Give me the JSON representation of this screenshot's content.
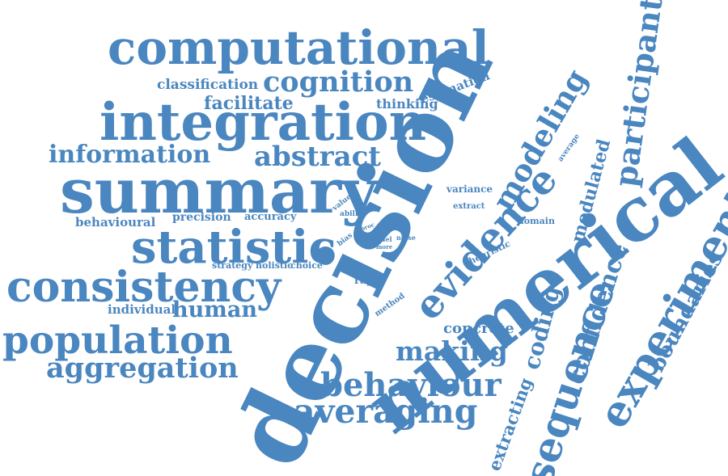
{
  "word_cloud": {
    "text_color": "#4a86bf",
    "background_color": "#ffffff",
    "words": {
      "decision": "decision",
      "numerical": "numerical",
      "summary": "summary",
      "integration": "integration",
      "computational": "computational",
      "consistency": "consistency",
      "statistic": "statistic",
      "population": "population",
      "experiment": "experiment",
      "sequence": "sequence",
      "evidence": "evidence",
      "behaviour": "behaviour",
      "averaging": "averaging",
      "cognition": "cognition",
      "aggregation": "aggregation",
      "participant": "participant",
      "modeling": "modeling",
      "making": "making",
      "abstract": "abstract",
      "information": "information",
      "confidence": "confidence",
      "human": "human",
      "boundaries": "boundaries",
      "coding": "coding",
      "facilitate": "facilitate",
      "modulated": "modulated",
      "extracting": "extracting",
      "classification": "classification",
      "concrete": "concrete",
      "thinking": "thinking",
      "estimation": "estimation",
      "behavioural": "behavioural",
      "precision": "precision",
      "accuracy": "accuracy",
      "individual": "individual",
      "variance": "variance",
      "rapid": "rapid",
      "strategy": "strategy",
      "holistic": "holistic",
      "choice": "choice",
      "heuristic": "heuristic",
      "domain": "domain",
      "extract": "extract",
      "method": "method",
      "average": "average",
      "value": "value",
      "ability": "ability",
      "bias": "bias",
      "proc": "proc",
      "model": "model",
      "more": "more",
      "noise": "noise"
    }
  }
}
